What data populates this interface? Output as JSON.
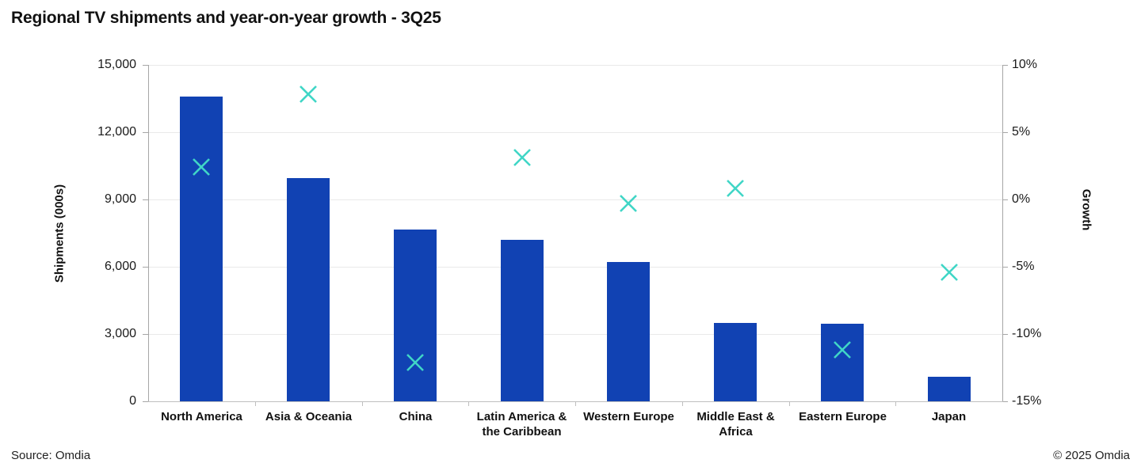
{
  "title": "Regional TV shipments and year-on-year growth - 3Q25",
  "footer": {
    "source": "Source: Omdia",
    "copyright": "© 2025 Omdia"
  },
  "chart_data": {
    "type": "combo-bar-scatter",
    "title": "Regional TV shipments and year-on-year growth - 3Q25",
    "categories": [
      "North America",
      "Asia & Oceania",
      "China",
      "Latin America & the Caribbean",
      "Western Europe",
      "Middle East & Africa",
      "Eastern Europe",
      "Japan"
    ],
    "series": [
      {
        "name": "Shipments (000s)",
        "type": "bar",
        "axis": "left",
        "values": [
          13600,
          9950,
          7650,
          7200,
          6200,
          3500,
          3450,
          1100
        ]
      },
      {
        "name": "Growth",
        "type": "scatter-x",
        "axis": "right",
        "values": [
          2.4,
          7.8,
          -12.1,
          3.1,
          -0.3,
          0.8,
          -11.2,
          -5.4
        ]
      }
    ],
    "left_axis": {
      "label": "Shipments (000s)",
      "min": 0,
      "max": 15000,
      "step": 3000,
      "tick_labels": [
        "0",
        "3,000",
        "6,000",
        "9,000",
        "12,000",
        "15,000"
      ]
    },
    "right_axis": {
      "label": "Growth",
      "min": -15,
      "max": 10,
      "step": 5,
      "tick_labels": [
        "-15%",
        "-10%",
        "-5%",
        "0%",
        "5%",
        "10%"
      ]
    },
    "grid": true,
    "legend": false,
    "colors": {
      "bar": "#1142b3",
      "marker": "#40d6c6",
      "gridline": "#e9e9e9",
      "side_axis": "#a6a6a6",
      "bottom_axis": "#bfbfbf",
      "text": "#111111"
    }
  }
}
